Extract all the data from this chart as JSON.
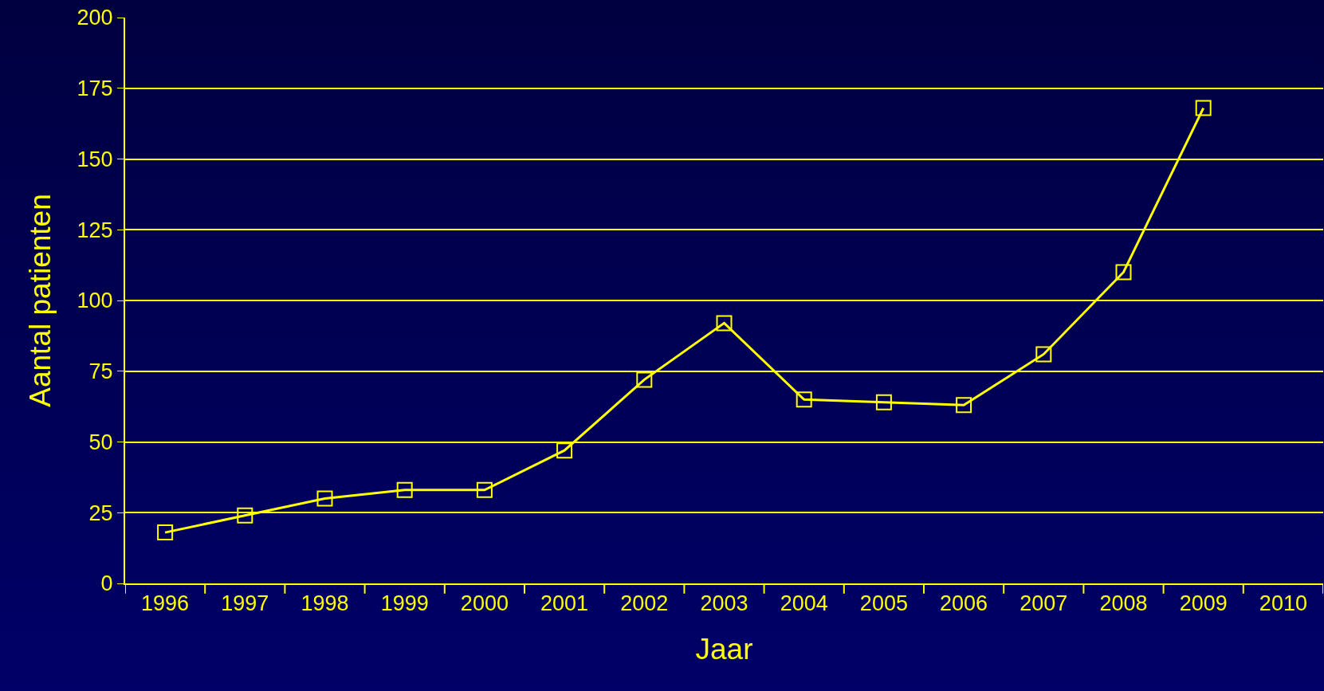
{
  "chart_data": {
    "type": "line",
    "xlabel": "Jaar",
    "ylabel": "Aantal patienten",
    "categories": [
      "1996",
      "1997",
      "1998",
      "1999",
      "2000",
      "2001",
      "2002",
      "2003",
      "2004",
      "2005",
      "2006",
      "2007",
      "2008",
      "2009",
      "2010"
    ],
    "series": [
      {
        "color": "#ffff00",
        "values": [
          18,
          24,
          30,
          33,
          33,
          47,
          72,
          92,
          65,
          64,
          63,
          81,
          110,
          168,
          null
        ]
      }
    ],
    "ylim": [
      0,
      200
    ],
    "yticks": [
      0,
      25,
      50,
      75,
      100,
      125,
      150,
      175,
      200
    ],
    "grid": "y",
    "marker": "square",
    "line_style": "solid"
  }
}
